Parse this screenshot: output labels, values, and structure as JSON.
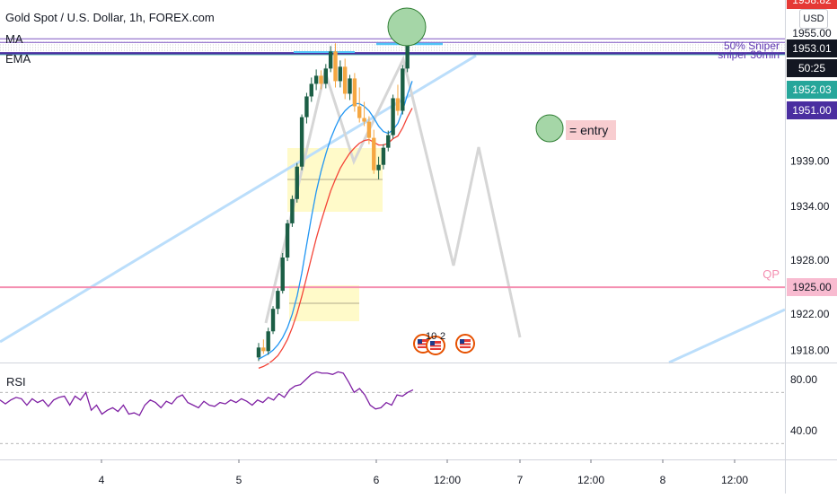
{
  "header": {
    "title": "Gold Spot / U.S. Dollar, 1h, FOREX.com",
    "indicator_ma": "MA",
    "indicator_ema": "EMA",
    "currency": "USD"
  },
  "price_scale": {
    "top_partial_label": "1958.82",
    "tags": [
      {
        "label": "1955.00",
        "bg": "#ffffff",
        "fg": "#131722"
      },
      {
        "label": "1953.01",
        "bg": "#131722",
        "fg": "#ffffff"
      },
      {
        "label": "50:25",
        "bg": "#131722",
        "fg": "#ffffff"
      },
      {
        "label": "1952.03",
        "bg": "#26a69a",
        "fg": "#ffffff"
      },
      {
        "label": "1951.00",
        "bg": "#4a2ea0",
        "fg": "#ffffff"
      },
      {
        "label": "1925.00",
        "bg": "#f8bbd0",
        "fg": "#131722"
      }
    ],
    "ticks": [
      "1939.00",
      "1934.00",
      "1928.00",
      "1922.00",
      "1918.00"
    ]
  },
  "annotations": {
    "sniper_50": "50% Sniper",
    "sniper_30": "sniper 30min",
    "qp": "QP",
    "entry": "= entry",
    "event_count_1": "10",
    "event_count_2": "2"
  },
  "chart_data": {
    "type": "candlestick",
    "title": "Gold Spot / U.S. Dollar, 1h, FOREX.com",
    "x_labels": [
      "4",
      "5",
      "6",
      "12:00",
      "7",
      "12:00",
      "8",
      "12:00"
    ],
    "ylim": [
      1915,
      1958
    ],
    "horizontal_levels": [
      {
        "name": "50% Sniper",
        "value": 1952.6,
        "color": "#7e57c2"
      },
      {
        "name": "sniper 30min",
        "value": 1952.2,
        "color": "#7e57c2"
      },
      {
        "name": "",
        "value": 1951.0,
        "color": "#4a2ea0"
      },
      {
        "name": "QP",
        "value": 1925.0,
        "color": "#f48fb1"
      }
    ],
    "candles": [
      [
        1917.2,
        1918.8,
        1916.8,
        1918.3
      ],
      [
        1918.3,
        1919.2,
        1917.6,
        1917.9
      ],
      [
        1917.9,
        1920.5,
        1917.5,
        1920.1
      ],
      [
        1920.1,
        1922.9,
        1919.8,
        1922.6
      ],
      [
        1922.6,
        1924.9,
        1922.0,
        1924.6
      ],
      [
        1924.6,
        1928.8,
        1924.3,
        1928.3
      ],
      [
        1928.3,
        1932.5,
        1927.9,
        1932.1
      ],
      [
        1932.1,
        1935.2,
        1931.7,
        1934.8
      ],
      [
        1934.8,
        1938.8,
        1934.4,
        1938.4
      ],
      [
        1938.4,
        1944.2,
        1938.0,
        1943.9
      ],
      [
        1943.9,
        1946.6,
        1943.2,
        1946.2
      ],
      [
        1946.2,
        1948.3,
        1945.6,
        1947.6
      ],
      [
        1947.6,
        1949.2,
        1946.9,
        1948.5
      ],
      [
        1948.5,
        1949.1,
        1947.0,
        1947.6
      ],
      [
        1947.6,
        1949.8,
        1947.1,
        1949.3
      ],
      [
        1949.3,
        1951.8,
        1948.9,
        1951.2
      ],
      [
        1951.2,
        1952.1,
        1947.2,
        1947.9
      ],
      [
        1947.9,
        1950.2,
        1947.2,
        1949.5
      ],
      [
        1949.5,
        1950.4,
        1945.9,
        1946.5
      ],
      [
        1946.5,
        1948.6,
        1945.8,
        1948.2
      ],
      [
        1948.2,
        1948.8,
        1944.5,
        1945.1
      ],
      [
        1945.1,
        1947.2,
        1943.3,
        1943.8
      ],
      [
        1943.8,
        1945.6,
        1942.9,
        1943.4
      ],
      [
        1943.4,
        1944.0,
        1940.9,
        1941.6
      ],
      [
        1941.6,
        1942.5,
        1937.6,
        1938.0
      ],
      [
        1938.0,
        1939.5,
        1937.0,
        1938.6
      ],
      [
        1938.6,
        1940.9,
        1938.1,
        1940.5
      ],
      [
        1940.5,
        1942.4,
        1940.1,
        1941.9
      ],
      [
        1941.9,
        1946.4,
        1941.5,
        1946.0
      ],
      [
        1946.0,
        1947.5,
        1944.1,
        1944.6
      ],
      [
        1944.6,
        1949.7,
        1944.2,
        1949.3
      ],
      [
        1949.3,
        1953.4,
        1948.9,
        1952.9
      ],
      [
        1952.9,
        1953.6,
        1952.1,
        1953.0
      ]
    ],
    "rsi": {
      "label": "RSI",
      "ticks": [
        "80.00",
        "40.00"
      ],
      "ylim": [
        20,
        100
      ],
      "levels": [
        70,
        30
      ],
      "values": [
        64,
        61,
        64,
        66,
        65,
        60,
        65,
        62,
        64,
        59,
        64,
        66,
        67,
        60,
        67,
        64,
        70,
        56,
        60,
        53,
        56,
        58,
        55,
        60,
        53,
        54,
        52,
        60,
        64,
        62,
        58,
        63,
        61,
        66,
        68,
        62,
        60,
        58,
        63,
        60,
        59,
        62,
        61,
        64,
        62,
        65,
        63,
        60,
        64,
        62,
        66,
        64,
        69,
        66,
        72,
        75,
        76,
        80,
        84,
        86,
        85,
        85,
        84,
        86,
        85,
        78,
        70,
        73,
        68,
        60,
        57,
        58,
        62,
        60,
        68,
        67,
        70,
        72
      ]
    },
    "ma": [
      1917.0,
      1917.3,
      1917.6,
      1918.0,
      1918.6,
      1919.4,
      1920.5,
      1922.0,
      1924.0,
      1926.6,
      1929.7,
      1932.8,
      1935.6,
      1937.9,
      1939.8,
      1941.5,
      1942.8,
      1943.9,
      1944.6,
      1945.1,
      1945.4,
      1945.4,
      1945.1,
      1944.6,
      1943.8,
      1942.9,
      1942.3,
      1942.1,
      1942.5,
      1943.2,
      1944.6,
      1946.4,
      1947.9
    ],
    "ema": [
      1916.0,
      1916.2,
      1916.5,
      1916.9,
      1917.4,
      1918.2,
      1919.2,
      1920.5,
      1922.1,
      1924.0,
      1926.1,
      1928.3,
      1930.4,
      1932.3,
      1934.0,
      1935.7,
      1937.0,
      1938.2,
      1939.1,
      1939.9,
      1940.5,
      1941.0,
      1941.3,
      1941.4,
      1941.1,
      1940.8,
      1940.8,
      1941.0,
      1941.5,
      1941.8,
      1942.7,
      1943.9,
      1944.9
    ]
  }
}
